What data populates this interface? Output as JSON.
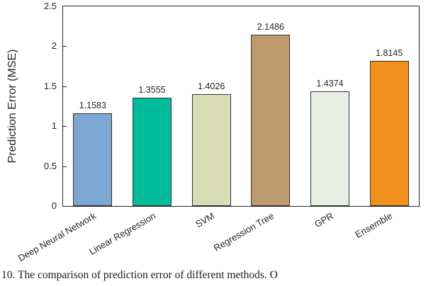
{
  "chart_data": {
    "type": "bar",
    "categories": [
      "Deep Neural Network",
      "Linear Regression",
      "SVM",
      "Regression Tree",
      "GPR",
      "Ensemble"
    ],
    "values": [
      1.1583,
      1.3555,
      1.4026,
      2.1486,
      1.4374,
      1.8145
    ],
    "value_labels": [
      "1.1583",
      "1.3555",
      "1.4026",
      "2.1486",
      "1.4374",
      "1.8145"
    ],
    "bar_colors": [
      "#7EA6D3",
      "#00BC9A",
      "#D8DDB5",
      "#BE9B6F",
      "#E9EEE5",
      "#F2901E"
    ],
    "title": "",
    "xlabel": "",
    "ylabel": "Prediction Error (MSE)",
    "ylim": [
      0,
      2.5
    ],
    "yticks": [
      0,
      0.5,
      1,
      1.5,
      2,
      2.5
    ],
    "grid": false,
    "legend": "none",
    "axis_color": "#262626"
  },
  "caption": {
    "text": "10.   The comparison of prediction error of different methods. O"
  }
}
